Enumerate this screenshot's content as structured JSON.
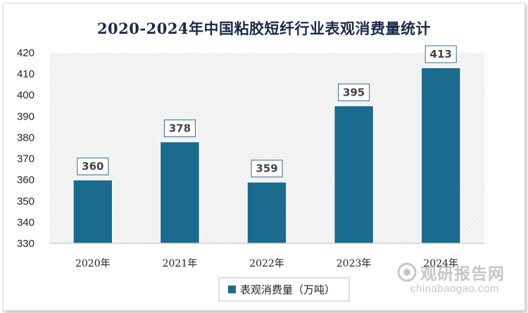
{
  "chart_data": {
    "type": "bar",
    "title": "2020-2024年中国粘胶短纤行业表观消费量统计",
    "categories": [
      "2020年",
      "2021年",
      "2022年",
      "2023年",
      "2024年"
    ],
    "series": [
      {
        "name": "表观消费量（万吨）",
        "values": [
          360,
          378,
          359,
          395,
          413
        ]
      }
    ],
    "ylim": [
      330,
      420
    ],
    "yticks": [
      330,
      340,
      350,
      360,
      370,
      380,
      390,
      400,
      410,
      420
    ],
    "grid": false,
    "legend": "bottom-center",
    "colors": {
      "bar": "#1a6b8e",
      "label_border": "#2d6f90"
    }
  },
  "watermark": {
    "cn": "观研报告网",
    "en": "chinabaogao.com"
  }
}
